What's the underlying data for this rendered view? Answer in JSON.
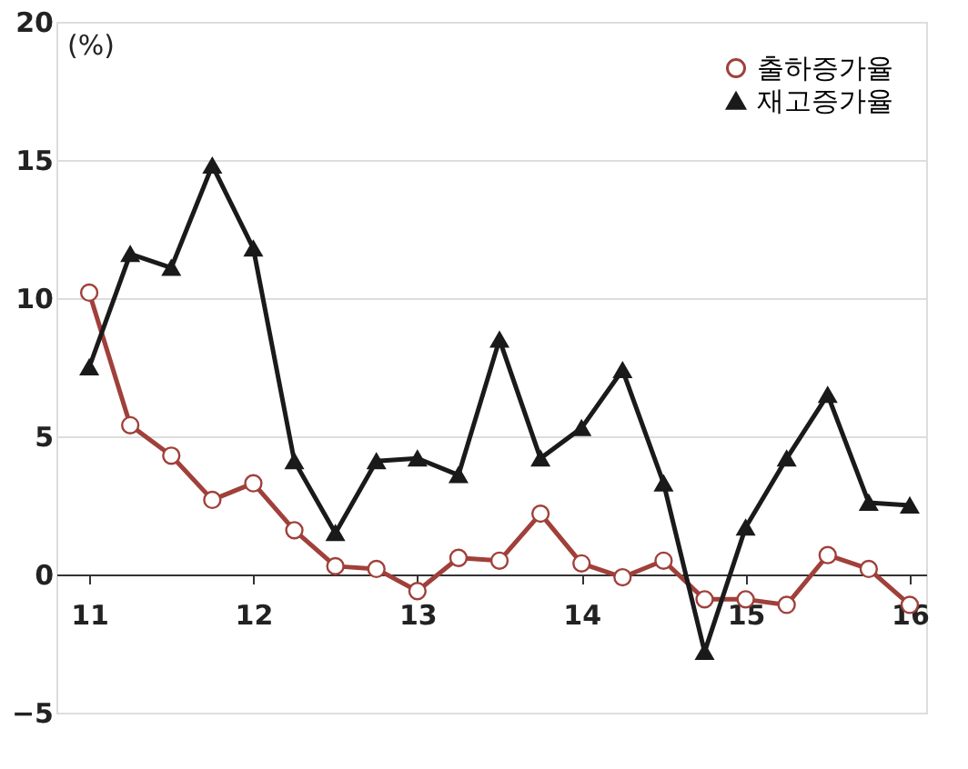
{
  "chart_data": {
    "type": "line",
    "x": [
      11,
      11.25,
      11.5,
      11.75,
      12,
      12.25,
      12.5,
      12.75,
      13,
      13.25,
      13.5,
      13.75,
      14,
      14.25,
      14.5,
      14.75,
      15,
      15.25,
      15.5,
      15.75,
      16
    ],
    "series": [
      {
        "name": "출하증가율",
        "color": "#a0403a",
        "marker": "circle",
        "values": [
          10.2,
          5.4,
          4.3,
          2.7,
          3.3,
          1.6,
          0.3,
          0.2,
          -0.6,
          0.6,
          0.5,
          2.2,
          0.4,
          -0.1,
          0.5,
          -0.9,
          -0.9,
          -1.1,
          0.7,
          0.2,
          -1.1
        ]
      },
      {
        "name": "재고증가율",
        "color": "#1a1a1a",
        "marker": "triangle",
        "values": [
          7.5,
          11.6,
          11.1,
          14.8,
          11.8,
          4.1,
          1.5,
          4.1,
          4.2,
          3.6,
          8.5,
          4.2,
          5.3,
          7.4,
          3.3,
          -2.8,
          1.7,
          4.2,
          6.5,
          2.6,
          2.5
        ]
      }
    ],
    "xlim": [
      10.8,
      16.1
    ],
    "xticks": [
      11,
      12,
      13,
      14,
      15,
      16
    ],
    "ylim": [
      -5,
      20
    ],
    "yticks": [
      -5,
      0,
      5,
      10,
      15,
      20
    ],
    "grid": "y",
    "legend": "top right",
    "annotations": [
      "(%)"
    ]
  }
}
